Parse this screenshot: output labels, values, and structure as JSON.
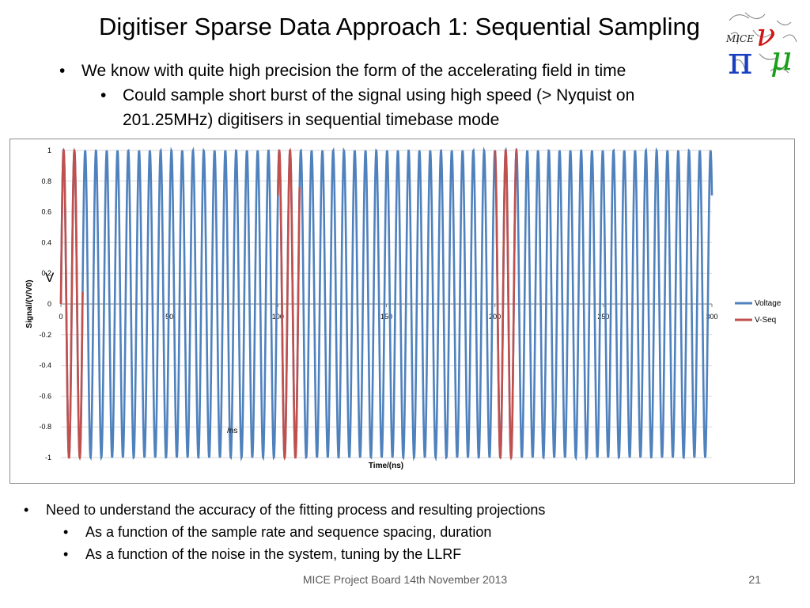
{
  "slide": {
    "title": "Digitiser Sparse Data Approach 1: Sequential Sampling",
    "bullets_top": [
      {
        "text": "We know with quite high precision the form of the accelerating field in time",
        "level": 1
      },
      {
        "text": "Could sample short burst of the signal using high speed (> Nyquist on 201.25MHz) digitisers in sequential timebase mode",
        "level": 2
      }
    ],
    "bullets_bottom": [
      {
        "text": "Need to understand the accuracy of the fitting process and resulting projections",
        "level": 1
      },
      {
        "text": "As a function of the sample rate and sequence spacing, duration",
        "level": 2
      },
      {
        "text": "As a function of the noise in the system, tuning by the LLRF",
        "level": 2
      }
    ],
    "bullet_char": "•",
    "footer": "MICE Project Board 14th November 2013",
    "page_number": "21",
    "logo": {
      "text_mice": "MICE",
      "icons": [
        "pi-symbol",
        "nu-symbol",
        "mu-symbol"
      ],
      "colors": [
        "#1a3fbf",
        "#d01515",
        "#1a9f1a",
        "#222222"
      ]
    }
  },
  "chart_data": {
    "type": "line",
    "xlabel": "Time/(ns)",
    "ylabel": "Signal/(V/V0)",
    "xlim": [
      0,
      300
    ],
    "ylim": [
      -1,
      1
    ],
    "x_ticks": [
      "0",
      "50",
      "100",
      "150",
      "200",
      "250",
      "300"
    ],
    "y_ticks": [
      "1",
      "0.8",
      "0.6",
      "0.4",
      "0.2",
      "0",
      "-0.2",
      "-0.4",
      "-0.6",
      "-0.8",
      "-1"
    ],
    "annotations": [
      "V",
      "/ns"
    ],
    "legend_position": "right",
    "grid": true,
    "series": [
      {
        "name": "Voltage",
        "color": "#4f81bd",
        "function": "sin(2*pi*0.20125*t)",
        "x_range": [
          0,
          300
        ]
      },
      {
        "name": "V-Seq",
        "color": "#c0504d",
        "function": "sin(2*pi*0.20125*t)",
        "segments": [
          [
            0,
            10
          ],
          [
            100,
            110
          ],
          [
            200,
            210
          ]
        ]
      }
    ]
  }
}
